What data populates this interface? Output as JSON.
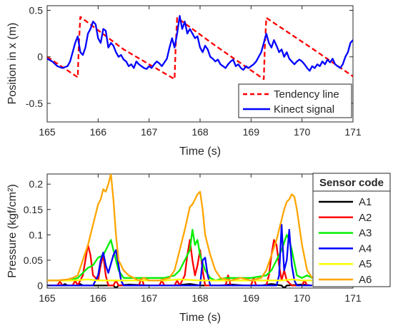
{
  "colors": {
    "tendency": "#ff0000",
    "kinect": "#0000ff",
    "A1": "#000000",
    "A2": "#ff0000",
    "A3": "#00ee00",
    "A4": "#0000ff",
    "A5": "#ffff00",
    "A6": "#ffa500"
  },
  "chart_data": [
    {
      "type": "line",
      "xlabel": "Time (s)",
      "ylabel": "Position in x (m)",
      "xlim": [
        165,
        171
      ],
      "ylim": [
        -0.7,
        0.55
      ],
      "xticks": [
        165,
        166,
        167,
        168,
        169,
        170,
        171
      ],
      "yticks": [
        -0.5,
        0,
        0.5
      ],
      "ytick_labels": [
        "-0.5",
        "0",
        "0.5"
      ],
      "legend_position": "bottom-right",
      "grid": false,
      "series": [
        {
          "name": "Tendency line",
          "style": "dashed",
          "color": "#ff0000",
          "x": [
            165.0,
            165.6,
            165.62,
            165.65,
            166.5,
            167.5,
            167.52,
            167.55,
            168.3,
            169.25,
            169.27,
            169.3,
            170.2,
            171.0
          ],
          "y": [
            0.0,
            -0.22,
            0.1,
            0.43,
            0.08,
            -0.24,
            0.1,
            0.42,
            0.12,
            -0.24,
            0.1,
            0.42,
            0.09,
            -0.21
          ]
        },
        {
          "name": "Kinect signal",
          "style": "solid",
          "color": "#0000ff",
          "x": [
            165.0,
            165.1,
            165.2,
            165.3,
            165.4,
            165.45,
            165.5,
            165.55,
            165.6,
            165.65,
            165.7,
            165.75,
            165.8,
            165.85,
            165.9,
            165.95,
            166.0,
            166.05,
            166.1,
            166.15,
            166.2,
            166.25,
            166.3,
            166.35,
            166.4,
            166.45,
            166.5,
            166.55,
            166.6,
            166.65,
            166.7,
            166.75,
            166.8,
            166.85,
            166.9,
            166.95,
            167.0,
            167.05,
            167.1,
            167.15,
            167.2,
            167.25,
            167.3,
            167.35,
            167.4,
            167.45,
            167.5,
            167.55,
            167.6,
            167.65,
            167.7,
            167.75,
            167.8,
            167.85,
            167.9,
            167.95,
            168.0,
            168.05,
            168.1,
            168.15,
            168.2,
            168.25,
            168.3,
            168.35,
            168.4,
            168.45,
            168.5,
            168.55,
            168.6,
            168.65,
            168.7,
            168.75,
            168.8,
            168.85,
            168.9,
            168.95,
            169.0,
            169.05,
            169.1,
            169.15,
            169.2,
            169.25,
            169.3,
            169.35,
            169.4,
            169.45,
            169.5,
            169.55,
            169.6,
            169.65,
            169.7,
            169.75,
            169.8,
            169.85,
            169.9,
            169.95,
            170.0,
            170.05,
            170.1,
            170.15,
            170.2,
            170.25,
            170.3,
            170.35,
            170.4,
            170.45,
            170.5,
            170.55,
            170.6,
            170.65,
            170.7,
            170.75,
            170.8,
            170.85,
            170.9,
            170.95,
            171.0
          ],
          "y": [
            -0.02,
            -0.05,
            -0.1,
            -0.12,
            -0.1,
            -0.05,
            0.05,
            0.15,
            0.22,
            0.05,
            0.02,
            0.1,
            0.25,
            0.3,
            0.38,
            0.35,
            0.2,
            0.15,
            0.3,
            0.28,
            0.1,
            0.15,
            0.12,
            0.05,
            0.0,
            0.02,
            -0.03,
            -0.05,
            -0.1,
            -0.08,
            -0.12,
            -0.05,
            -0.08,
            -0.1,
            -0.12,
            -0.13,
            -0.1,
            -0.12,
            -0.08,
            -0.05,
            -0.07,
            -0.1,
            -0.06,
            -0.02,
            0.1,
            0.2,
            0.1,
            0.25,
            0.44,
            0.3,
            0.38,
            0.25,
            0.3,
            0.25,
            0.2,
            0.22,
            0.1,
            0.05,
            0.12,
            0.08,
            0.0,
            -0.02,
            -0.05,
            -0.03,
            -0.08,
            -0.1,
            -0.12,
            -0.08,
            -0.05,
            -0.03,
            -0.1,
            -0.08,
            -0.12,
            -0.14,
            -0.1,
            -0.12,
            -0.1,
            -0.08,
            -0.05,
            0.0,
            0.05,
            0.15,
            0.25,
            0.15,
            0.1,
            0.18,
            0.12,
            0.05,
            0.08,
            0.0,
            0.05,
            -0.02,
            -0.05,
            -0.08,
            -0.05,
            -0.03,
            -0.05,
            -0.08,
            -0.12,
            -0.15,
            -0.1,
            -0.12,
            -0.08,
            -0.1,
            -0.05,
            -0.08,
            -0.03,
            -0.06,
            -0.02,
            -0.08,
            -0.1,
            -0.12,
            -0.08,
            0.0,
            0.05,
            0.15,
            0.18
          ]
        }
      ]
    },
    {
      "type": "line",
      "xlabel": "Time (s)",
      "ylabel": "Pressure (kgf/cm²)",
      "xlim": [
        165,
        171
      ],
      "ylim": [
        -0.005,
        0.22
      ],
      "xticks": [
        165,
        166,
        167,
        168,
        169,
        170,
        171
      ],
      "yticks": [
        0,
        0.05,
        0.1,
        0.15,
        0.2
      ],
      "ytick_labels": [
        "0",
        "0.05",
        "0.1",
        "0.15",
        "0.2"
      ],
      "legend_title": "Sensor code",
      "legend_position": "outside-right",
      "grid": false,
      "series": [
        {
          "name": "A1",
          "color": "#000000",
          "x": [
            165.0,
            165.3,
            165.35,
            165.4,
            165.6,
            165.65,
            165.7,
            166.0,
            166.3,
            166.35,
            166.4,
            166.6,
            167.0,
            167.5,
            167.8,
            168.0,
            168.4,
            168.6,
            168.9,
            169.2,
            169.4,
            169.6,
            169.65,
            169.7,
            170.0,
            170.2
          ],
          "y": [
            0.0,
            0.0,
            0.003,
            0.0,
            0.0,
            0.003,
            0.0,
            0.0,
            0.0,
            -0.005,
            0.0,
            0.002,
            0.0,
            0.0,
            0.003,
            0.0,
            0.0,
            0.002,
            0.0,
            0.0,
            0.003,
            0.0,
            -0.005,
            0.0,
            0.002,
            0.0
          ]
        },
        {
          "name": "A2",
          "color": "#ff0000",
          "x": [
            165.0,
            165.2,
            165.25,
            165.3,
            165.5,
            165.55,
            165.6,
            165.7,
            165.75,
            165.8,
            165.85,
            165.9,
            166.0,
            166.05,
            166.1,
            166.15,
            166.2,
            166.3,
            166.35,
            166.4,
            166.5,
            166.8,
            166.85,
            166.9,
            167.2,
            167.25,
            167.3,
            167.5,
            167.55,
            167.6,
            167.7,
            167.75,
            167.8,
            167.85,
            167.9,
            167.95,
            168.0,
            168.05,
            168.1,
            168.2,
            168.5,
            168.55,
            168.6,
            169.0,
            169.05,
            169.1,
            169.3,
            169.35,
            169.4,
            169.45,
            169.5,
            169.55,
            169.6,
            169.65,
            169.7,
            169.8,
            170.0,
            170.05,
            170.1,
            170.2
          ],
          "y": [
            0.0,
            0.0,
            0.008,
            0.0,
            0.0,
            0.01,
            0.0,
            0.02,
            0.05,
            0.08,
            0.06,
            0.02,
            0.01,
            0.04,
            0.06,
            0.02,
            0.0,
            0.0,
            0.01,
            0.0,
            0.0,
            0.0,
            0.015,
            0.0,
            0.0,
            0.01,
            0.0,
            0.0,
            0.01,
            0.0,
            0.02,
            0.06,
            0.09,
            0.05,
            0.02,
            0.04,
            0.07,
            0.03,
            0.0,
            0.0,
            0.0,
            0.02,
            0.0,
            0.0,
            0.015,
            0.0,
            0.0,
            0.02,
            0.06,
            0.09,
            0.08,
            0.04,
            0.01,
            0.03,
            0.01,
            0.0,
            0.0,
            0.01,
            0.0,
            0.0
          ]
        },
        {
          "name": "A3",
          "color": "#00ee00",
          "x": [
            165.0,
            165.3,
            165.5,
            165.6,
            165.7,
            165.8,
            165.9,
            166.0,
            166.1,
            166.2,
            166.25,
            166.3,
            166.4,
            166.5,
            167.0,
            167.3,
            167.5,
            167.6,
            167.7,
            167.8,
            167.85,
            167.9,
            167.95,
            168.0,
            168.1,
            168.2,
            168.3,
            168.5,
            169.0,
            169.3,
            169.4,
            169.5,
            169.6,
            169.7,
            169.75,
            169.8,
            169.9,
            170.0,
            170.1,
            170.2
          ],
          "y": [
            0.01,
            0.01,
            0.012,
            0.015,
            0.025,
            0.035,
            0.04,
            0.055,
            0.06,
            0.08,
            0.09,
            0.07,
            0.03,
            0.015,
            0.015,
            0.015,
            0.02,
            0.03,
            0.05,
            0.07,
            0.11,
            0.08,
            0.09,
            0.06,
            0.03,
            0.015,
            0.01,
            0.015,
            0.015,
            0.02,
            0.03,
            0.05,
            0.07,
            0.1,
            0.09,
            0.07,
            0.02,
            0.015,
            0.02,
            0.015
          ]
        },
        {
          "name": "A4",
          "color": "#0000ff",
          "x": [
            165.0,
            165.5,
            165.9,
            166.0,
            166.05,
            166.1,
            166.15,
            166.2,
            166.3,
            166.35,
            166.4,
            166.45,
            166.5,
            166.8,
            167.5,
            168.0,
            168.05,
            168.1,
            168.15,
            168.2,
            169.5,
            169.55,
            169.6,
            169.62,
            169.65,
            169.7,
            169.75,
            169.8,
            169.85,
            169.9,
            170.2
          ],
          "y": [
            0.0,
            0.0,
            0.0,
            0.02,
            0.05,
            0.065,
            0.04,
            0.025,
            0.06,
            0.07,
            0.04,
            0.01,
            0.0,
            0.0,
            0.0,
            0.0,
            0.05,
            0.055,
            0.02,
            0.0,
            0.0,
            0.02,
            0.12,
            0.08,
            0.03,
            0.05,
            0.11,
            0.04,
            0.01,
            0.0,
            0.0
          ]
        },
        {
          "name": "A5",
          "color": "#ffff00",
          "x": [
            165.0,
            165.5,
            165.8,
            166.0,
            166.4,
            166.7,
            167.0,
            167.3,
            167.6,
            168.0,
            168.3,
            168.6,
            169.0,
            169.3,
            169.6,
            169.8,
            170.0,
            170.2
          ],
          "y": [
            0.01,
            0.01,
            0.012,
            0.01,
            0.01,
            0.01,
            0.01,
            0.01,
            0.012,
            0.01,
            0.01,
            0.01,
            0.01,
            0.01,
            0.01,
            0.012,
            0.01,
            0.01
          ]
        },
        {
          "name": "A6",
          "color": "#ffa500",
          "x": [
            165.0,
            165.2,
            165.4,
            165.5,
            165.6,
            165.7,
            165.8,
            165.9,
            166.0,
            166.05,
            166.1,
            166.15,
            166.2,
            166.25,
            166.3,
            166.35,
            166.4,
            166.5,
            166.6,
            166.7,
            166.8,
            166.9,
            167.0,
            167.2,
            167.4,
            167.5,
            167.6,
            167.7,
            167.8,
            167.85,
            167.9,
            167.95,
            168.0,
            168.05,
            168.1,
            168.2,
            168.3,
            168.4,
            168.6,
            168.8,
            169.0,
            169.2,
            169.3,
            169.4,
            169.5,
            169.6,
            169.65,
            169.7,
            169.75,
            169.8,
            169.85,
            169.9,
            170.0,
            170.1,
            170.2
          ],
          "y": [
            0.01,
            0.01,
            0.012,
            0.015,
            0.02,
            0.05,
            0.08,
            0.12,
            0.16,
            0.17,
            0.19,
            0.185,
            0.2,
            0.22,
            0.17,
            0.1,
            0.05,
            0.03,
            0.02,
            0.015,
            0.01,
            0.015,
            0.01,
            0.01,
            0.015,
            0.03,
            0.07,
            0.11,
            0.155,
            0.16,
            0.17,
            0.18,
            0.185,
            0.15,
            0.1,
            0.06,
            0.03,
            0.015,
            0.01,
            0.015,
            0.01,
            0.015,
            0.03,
            0.06,
            0.09,
            0.13,
            0.15,
            0.165,
            0.17,
            0.18,
            0.175,
            0.15,
            0.08,
            0.03,
            0.015
          ]
        }
      ]
    }
  ]
}
